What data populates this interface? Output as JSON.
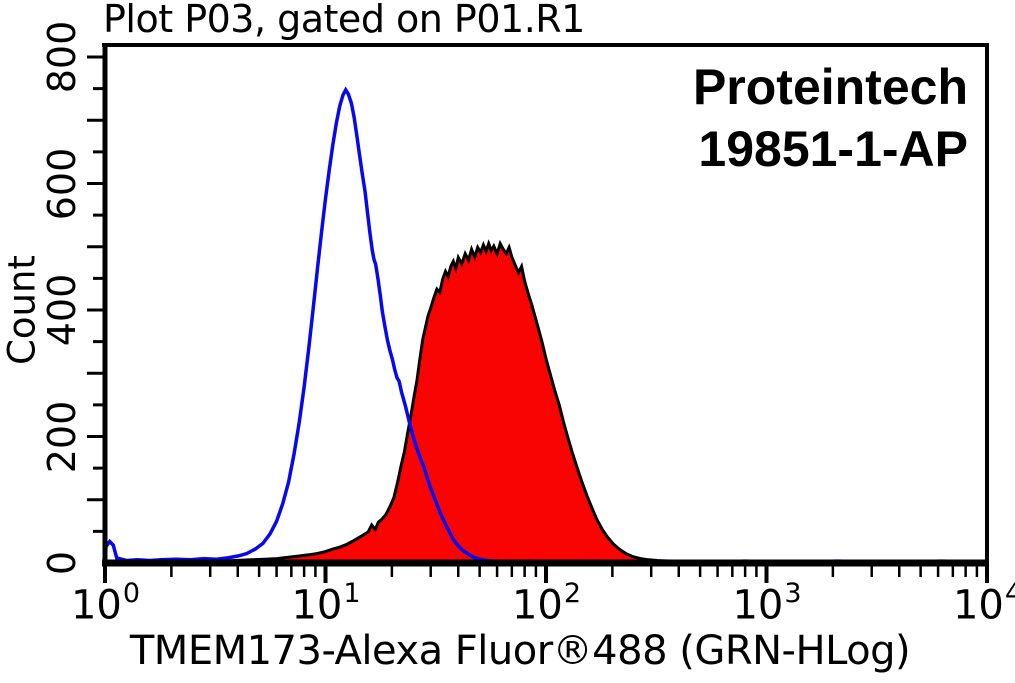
{
  "watermark": {
    "line1": "Proteintech",
    "line2": "19851-1-AP",
    "color": "#000000"
  },
  "chart_data": {
    "type": "area",
    "title": "Plot P03, gated on P01.R1",
    "xlabel": "TMEM173-Alexa Fluor®488 (GRN-HLog)",
    "ylabel": "Count",
    "x_scale": "log10",
    "x_range": [
      1,
      10000
    ],
    "x_tick_exponents": [
      0,
      1,
      2,
      3,
      4
    ],
    "y_range": [
      0,
      800
    ],
    "y_ticks_labeled": [
      0,
      200,
      400,
      600,
      800
    ],
    "y_tick_minor_step": 50,
    "grid": false,
    "legend": "none",
    "axis_color": "#000000",
    "series": [
      {
        "name": "red-filled-histogram",
        "style": "filled",
        "stroke": "#000000",
        "fill": "#fa0303",
        "stroke_width": 3,
        "points": [
          [
            1.0,
            1
          ],
          [
            1.5,
            2
          ],
          [
            2.0,
            2
          ],
          [
            2.6,
            3
          ],
          [
            3.2,
            3
          ],
          [
            3.9,
            4
          ],
          [
            4.6,
            5
          ],
          [
            5.3,
            6
          ],
          [
            6.0,
            7
          ],
          [
            6.8,
            9
          ],
          [
            7.6,
            11
          ],
          [
            8.4,
            13
          ],
          [
            9.2,
            15
          ],
          [
            10.0,
            18
          ],
          [
            10.8,
            22
          ],
          [
            11.6,
            25
          ],
          [
            12.4,
            29
          ],
          [
            13.2,
            34
          ],
          [
            14.0,
            39
          ],
          [
            14.8,
            44
          ],
          [
            15.6,
            49
          ],
          [
            16.2,
            60
          ],
          [
            16.8,
            53
          ],
          [
            17.4,
            65
          ],
          [
            18.0,
            69
          ],
          [
            18.8,
            77
          ],
          [
            19.6,
            89
          ],
          [
            20.4,
            103
          ],
          [
            21.2,
            127
          ],
          [
            22.0,
            153
          ],
          [
            22.8,
            176
          ],
          [
            23.6,
            206
          ],
          [
            24.4,
            233
          ],
          [
            25.2,
            263
          ],
          [
            26.0,
            289
          ],
          [
            26.8,
            323
          ],
          [
            27.6,
            353
          ],
          [
            28.4,
            373
          ],
          [
            29.2,
            391
          ],
          [
            30.0,
            403
          ],
          [
            31.0,
            419
          ],
          [
            32.0,
            433
          ],
          [
            33.0,
            428
          ],
          [
            34.0,
            449
          ],
          [
            35.0,
            461
          ],
          [
            36.0,
            453
          ],
          [
            37.0,
            469
          ],
          [
            38.0,
            477
          ],
          [
            39.0,
            466
          ],
          [
            40.0,
            483
          ],
          [
            41.5,
            473
          ],
          [
            43.0,
            489
          ],
          [
            44.5,
            479
          ],
          [
            46.0,
            496
          ],
          [
            47.5,
            484
          ],
          [
            49.0,
            499
          ],
          [
            50.5,
            491
          ],
          [
            52.0,
            503
          ],
          [
            53.5,
            493
          ],
          [
            55.0,
            505
          ],
          [
            56.5,
            494
          ],
          [
            58.0,
            501
          ],
          [
            60.0,
            489
          ],
          [
            62.0,
            505
          ],
          [
            64.0,
            496
          ],
          [
            66.0,
            489
          ],
          [
            68.0,
            499
          ],
          [
            70.0,
            484
          ],
          [
            72.5,
            471
          ],
          [
            75.0,
            459
          ],
          [
            77.5,
            469
          ],
          [
            80.0,
            446
          ],
          [
            83.0,
            426
          ],
          [
            86.0,
            409
          ],
          [
            89.0,
            391
          ],
          [
            92.0,
            373
          ],
          [
            96.0,
            349
          ],
          [
            100.0,
            323
          ],
          [
            105.0,
            296
          ],
          [
            110.0,
            271
          ],
          [
            115.0,
            249
          ],
          [
            120.0,
            223
          ],
          [
            126.0,
            197
          ],
          [
            132.0,
            173
          ],
          [
            139.0,
            149
          ],
          [
            146.0,
            127
          ],
          [
            154.0,
            105
          ],
          [
            162.0,
            86
          ],
          [
            170.0,
            69
          ],
          [
            180.0,
            53
          ],
          [
            190.0,
            41
          ],
          [
            202.0,
            30
          ],
          [
            215.0,
            22
          ],
          [
            230.0,
            15
          ],
          [
            248.0,
            10
          ],
          [
            268.0,
            7
          ],
          [
            292.0,
            5
          ],
          [
            320.0,
            4
          ],
          [
            360.0,
            3
          ],
          [
            420.0,
            2
          ],
          [
            500.0,
            2
          ],
          [
            620.0,
            1
          ],
          [
            800.0,
            1
          ],
          [
            1100.0,
            1
          ],
          [
            1600.0,
            1
          ],
          [
            2400.0,
            1
          ],
          [
            3600.0,
            1
          ],
          [
            5500.0,
            1
          ],
          [
            8000.0,
            1
          ],
          [
            10000.0,
            1
          ]
        ]
      },
      {
        "name": "blue-open-histogram",
        "style": "open",
        "stroke": "#0808f0",
        "fill": "none",
        "stroke_width": 3.5,
        "points": [
          [
            1.0,
            2
          ],
          [
            1.01,
            26
          ],
          [
            1.05,
            34
          ],
          [
            1.09,
            28
          ],
          [
            1.13,
            8
          ],
          [
            1.25,
            4
          ],
          [
            1.4,
            5
          ],
          [
            1.6,
            4
          ],
          [
            1.8,
            5
          ],
          [
            2.1,
            6
          ],
          [
            2.45,
            5
          ],
          [
            2.8,
            7
          ],
          [
            3.2,
            6
          ],
          [
            3.6,
            8
          ],
          [
            4.0,
            11
          ],
          [
            4.4,
            15
          ],
          [
            4.8,
            22
          ],
          [
            5.2,
            31
          ],
          [
            5.6,
            46
          ],
          [
            6.0,
            66
          ],
          [
            6.4,
            94
          ],
          [
            6.8,
            128
          ],
          [
            7.2,
            172
          ],
          [
            7.6,
            222
          ],
          [
            8.0,
            278
          ],
          [
            8.4,
            340
          ],
          [
            8.8,
            404
          ],
          [
            9.2,
            466
          ],
          [
            9.6,
            524
          ],
          [
            10.0,
            576
          ],
          [
            10.4,
            622
          ],
          [
            10.8,
            662
          ],
          [
            11.2,
            696
          ],
          [
            11.6,
            722
          ],
          [
            12.0,
            740
          ],
          [
            12.35,
            748
          ],
          [
            12.7,
            741
          ],
          [
            13.1,
            727
          ],
          [
            13.5,
            704
          ],
          [
            13.9,
            674
          ],
          [
            14.3,
            642
          ],
          [
            14.7,
            614
          ],
          [
            15.1,
            588
          ],
          [
            15.5,
            554
          ],
          [
            15.9,
            522
          ],
          [
            16.3,
            494
          ],
          [
            16.6,
            480
          ],
          [
            16.9,
            472
          ],
          [
            17.3,
            449
          ],
          [
            17.7,
            424
          ],
          [
            18.1,
            398
          ],
          [
            18.6,
            374
          ],
          [
            19.1,
            352
          ],
          [
            19.6,
            336
          ],
          [
            20.1,
            322
          ],
          [
            20.6,
            306
          ],
          [
            21.1,
            293
          ],
          [
            21.6,
            287
          ],
          [
            22.1,
            271
          ],
          [
            23.0,
            249
          ],
          [
            24.0,
            223
          ],
          [
            25.0,
            200
          ],
          [
            26.0,
            181
          ],
          [
            27.0,
            164
          ],
          [
            28.0,
            151
          ],
          [
            29.0,
            133
          ],
          [
            30.0,
            118
          ],
          [
            31.0,
            106
          ],
          [
            32.0,
            93
          ],
          [
            33.0,
            81
          ],
          [
            34.0,
            71
          ],
          [
            35.0,
            61
          ],
          [
            36.5,
            49
          ],
          [
            38.0,
            37
          ],
          [
            40.0,
            27
          ],
          [
            42.0,
            20
          ],
          [
            44.0,
            15
          ],
          [
            47.0,
            9
          ],
          [
            50.0,
            6
          ],
          [
            54.0,
            4
          ],
          [
            60.0,
            3
          ],
          [
            70.0,
            2
          ],
          [
            85.0,
            3
          ],
          [
            105.0,
            2
          ],
          [
            130.0,
            2
          ],
          [
            165.0,
            3
          ],
          [
            210.0,
            2
          ],
          [
            270.0,
            2
          ],
          [
            350.0,
            3
          ],
          [
            450.0,
            2
          ],
          [
            600.0,
            2
          ],
          [
            800.0,
            3
          ],
          [
            1100.0,
            2
          ],
          [
            1500.0,
            2
          ],
          [
            2100.0,
            3
          ],
          [
            3000.0,
            2
          ],
          [
            4300.0,
            2
          ],
          [
            6200.0,
            3
          ],
          [
            9000.0,
            2
          ],
          [
            10000.0,
            2
          ]
        ]
      }
    ]
  }
}
